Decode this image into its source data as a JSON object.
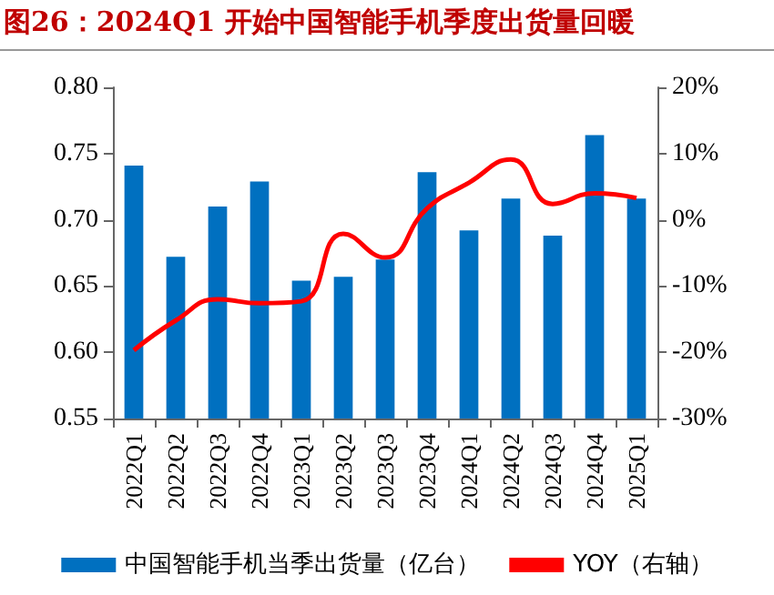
{
  "chart_data": {
    "type": "bar",
    "title": "图26：2024Q1 开始中国智能手机季度出货量回暖",
    "categories": [
      "2022Q1",
      "2022Q2",
      "2022Q3",
      "2022Q4",
      "2023Q1",
      "2023Q2",
      "2023Q3",
      "2023Q4",
      "2024Q1",
      "2024Q2",
      "2024Q3",
      "2024Q4",
      "2025Q1"
    ],
    "series": [
      {
        "name": "中国智能手机当季出货量（亿台）",
        "color": "#0070c0",
        "values": [
          0.741,
          0.672,
          0.71,
          0.729,
          0.654,
          0.657,
          0.67,
          0.736,
          0.692,
          0.716,
          0.688,
          0.764,
          0.716
        ]
      },
      {
        "name": "YOY（右轴）",
        "type": "line",
        "axis": "y2",
        "color": "#ff0000",
        "values": [
          -19.7,
          -15.2,
          -12.0,
          -12.6,
          -12.3,
          -2.1,
          -5.7,
          1.7,
          5.6,
          9.1,
          2.4,
          4.0,
          3.3
        ]
      }
    ],
    "ylim": [
      0.55,
      0.8
    ],
    "yticks": [
      {
        "value": 0.55,
        "label": "0.55"
      },
      {
        "value": 0.6,
        "label": "0.60"
      },
      {
        "value": 0.65,
        "label": "0.65"
      },
      {
        "value": 0.7,
        "label": "0.70"
      },
      {
        "value": 0.75,
        "label": "0.75"
      },
      {
        "value": 0.8,
        "label": "0.80"
      }
    ],
    "y2lim": [
      -30,
      20
    ],
    "y2ticks": [
      {
        "value": -30,
        "label": "-30%"
      },
      {
        "value": -20,
        "label": "-20%"
      },
      {
        "value": -10,
        "label": "-10%"
      },
      {
        "value": 0,
        "label": "0%"
      },
      {
        "value": 10,
        "label": "10%"
      },
      {
        "value": 20,
        "label": "20%"
      }
    ],
    "legend": "bottom",
    "grid": false,
    "marker": "none",
    "line_style": "solid"
  }
}
